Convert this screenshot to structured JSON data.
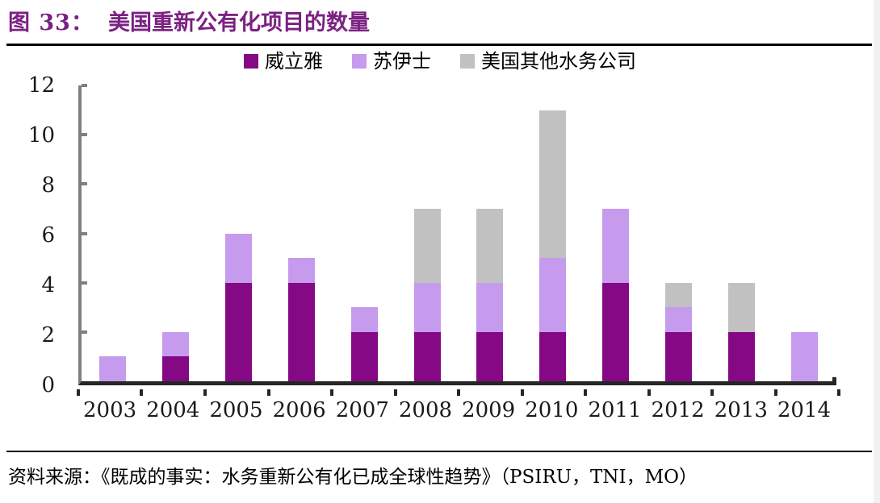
{
  "header": {
    "figure_label": "图 33：",
    "title": "美国重新公有化项目的数量"
  },
  "source_line": "资料来源：《既成的事实：水务重新公有化已成全球性趋势》（PSIRU，TNI，MO）",
  "colors": {
    "title_text": "#7B2182",
    "rule": "#000000",
    "y_axis": "#7f7f7f",
    "x_axis": "#262626",
    "label_text": "#1a1a1a",
    "veolia": "#850885",
    "suez": "#C69AEC",
    "other_us": "#C1C1C1"
  },
  "chart_data": {
    "type": "bar",
    "stacked": true,
    "title": "美国重新公有化项目的数量",
    "categories": [
      "2003",
      "2004",
      "2005",
      "2006",
      "2007",
      "2008",
      "2009",
      "2010",
      "2011",
      "2012",
      "2013",
      "2014"
    ],
    "series": [
      {
        "name": "威立雅",
        "color": "#850885",
        "values": [
          0,
          1,
          4,
          4,
          2,
          2,
          2,
          2,
          4,
          2,
          2,
          0
        ]
      },
      {
        "name": "苏伊士",
        "color": "#C69AEC",
        "values": [
          1,
          1,
          2,
          1,
          1,
          2,
          2,
          3,
          3,
          1,
          0,
          2
        ]
      },
      {
        "name": "美国其他水务公司",
        "color": "#C1C1C1",
        "values": [
          0,
          0,
          0,
          0,
          0,
          3,
          3,
          6,
          0,
          1,
          2,
          0
        ]
      }
    ],
    "totals": [
      1,
      2,
      6,
      5,
      3,
      7,
      7,
      11,
      7,
      4,
      4,
      2
    ],
    "xlabel": "",
    "ylabel": "",
    "ylim": [
      0,
      12
    ],
    "yticks": [
      0,
      2,
      4,
      6,
      8,
      10,
      12
    ],
    "grid": false,
    "legend_position": "top-center"
  }
}
